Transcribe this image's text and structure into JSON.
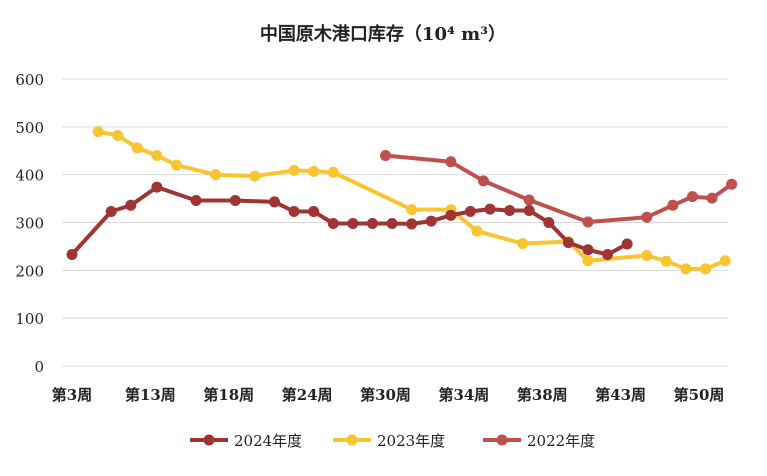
{
  "chart_data": {
    "type": "line",
    "title": "中国原木港口库存（10⁴ m³）",
    "xlabel": "",
    "ylabel": "",
    "ylim": [
      0,
      600
    ],
    "yticks": [
      0,
      100,
      200,
      300,
      400,
      500,
      600
    ],
    "xlim": [
      3,
      52
    ],
    "x_tick_labels": [
      {
        "week": 3,
        "label": "第3周"
      },
      {
        "week": 9,
        "label": "第13周"
      },
      {
        "week": 15,
        "label": "第18周"
      },
      {
        "week": 21,
        "label": "第24周"
      },
      {
        "week": 27,
        "label": "第30周"
      },
      {
        "week": 33,
        "label": "第34周"
      },
      {
        "week": 39,
        "label": "第38周"
      },
      {
        "week": 45,
        "label": "第43周"
      },
      {
        "week": 51,
        "label": "第50周"
      }
    ],
    "grid": true,
    "legend_position": "bottom",
    "series": [
      {
        "name": "2024年度",
        "color": "#9e3434",
        "points": [
          [
            3,
            233
          ],
          [
            6,
            323
          ],
          [
            7.5,
            336
          ],
          [
            9.5,
            374
          ],
          [
            12.5,
            346
          ],
          [
            15.5,
            346
          ],
          [
            18.5,
            343
          ],
          [
            20,
            323
          ],
          [
            21.5,
            323
          ],
          [
            23,
            298
          ],
          [
            24.5,
            298
          ],
          [
            26,
            298
          ],
          [
            27.5,
            298
          ],
          [
            29,
            297
          ],
          [
            30.5,
            303
          ],
          [
            32,
            315
          ],
          [
            33.5,
            323
          ],
          [
            35,
            328
          ],
          [
            36.5,
            325
          ],
          [
            38,
            325
          ],
          [
            39.5,
            300
          ],
          [
            41,
            258
          ],
          [
            42.5,
            243
          ],
          [
            44,
            233
          ],
          [
            45.5,
            255
          ]
        ]
      },
      {
        "name": "2023年度",
        "color": "#f7c531",
        "points": [
          [
            5,
            490
          ],
          [
            6.5,
            482
          ],
          [
            8,
            456
          ],
          [
            9.5,
            440
          ],
          [
            11,
            420
          ],
          [
            14,
            400
          ],
          [
            17,
            397
          ],
          [
            20,
            409
          ],
          [
            21.5,
            407
          ],
          [
            23,
            405
          ],
          [
            29,
            327
          ],
          [
            32,
            327
          ],
          [
            34,
            282
          ],
          [
            37.5,
            256
          ],
          [
            41,
            260
          ],
          [
            42.5,
            220
          ],
          [
            47,
            231
          ],
          [
            48.5,
            219
          ],
          [
            50,
            203
          ],
          [
            51.5,
            203
          ],
          [
            53,
            220
          ]
        ]
      },
      {
        "name": "2022年度",
        "color": "#c0504d",
        "points": [
          [
            27,
            440
          ],
          [
            32,
            427
          ],
          [
            34.5,
            387
          ],
          [
            38,
            347
          ],
          [
            42.5,
            301
          ],
          [
            47,
            311
          ],
          [
            49,
            336
          ],
          [
            50.5,
            354
          ],
          [
            52,
            351
          ],
          [
            53.5,
            380
          ]
        ]
      }
    ]
  }
}
